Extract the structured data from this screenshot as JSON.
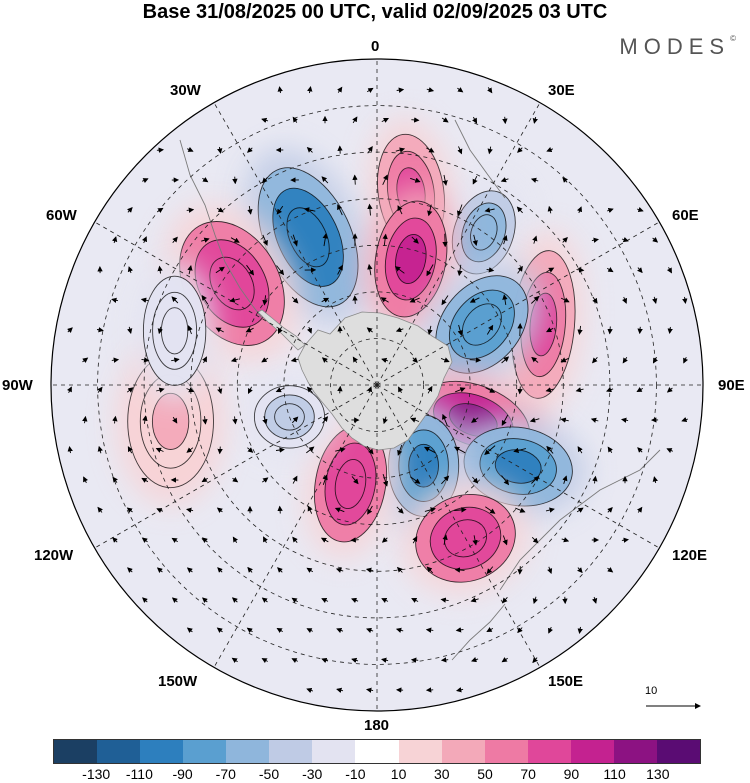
{
  "title": "Base 31/08/2025 00 UTC, valid 02/09/2025 03 UTC",
  "brand": "MODES",
  "brand_mark": "©",
  "longitudes": {
    "n": "0",
    "n30e": "30E",
    "n60e": "60E",
    "e": "90E",
    "s120e": "120E",
    "s150e": "150E",
    "s": "180",
    "s150w": "150W",
    "s120w": "120W",
    "w": "90W",
    "n60w": "60W",
    "n30w": "30W"
  },
  "reference_vector": {
    "label": "10",
    "magnitude": 10
  },
  "colorbar": {
    "colors": [
      "#1b3f63",
      "#1f5f96",
      "#2d7fbe",
      "#5a9fd0",
      "#8fb6dc",
      "#bfcbe5",
      "#e3e3f1",
      "#ffffff",
      "#f7d3d6",
      "#f3a9b9",
      "#ee7aa4",
      "#e0479a",
      "#c42290",
      "#8c1282",
      "#5a0c73"
    ],
    "ticks": [
      "-130",
      "-110",
      "-90",
      "-70",
      "-50",
      "-30",
      "-10",
      "10",
      "30",
      "50",
      "70",
      "90",
      "110",
      "130"
    ]
  },
  "anomalies": [
    {
      "lat": -48,
      "lon": 10,
      "value": 80,
      "rx": 42,
      "ry": 75,
      "rot": -8
    },
    {
      "lat": -50,
      "lon": 35,
      "value": -70,
      "rx": 38,
      "ry": 55,
      "rot": 20
    },
    {
      "lat": -55,
      "lon": -25,
      "value": -110,
      "rx": 55,
      "ry": 95,
      "rot": -25
    },
    {
      "lat": -52,
      "lon": -55,
      "value": 85,
      "rx": 60,
      "ry": 85,
      "rot": -30
    },
    {
      "lat": -62,
      "lon": 15,
      "value": 95,
      "rx": 45,
      "ry": 75,
      "rot": 10
    },
    {
      "lat": -52,
      "lon": 70,
      "value": 70,
      "rx": 40,
      "ry": 95,
      "rot": 5
    },
    {
      "lat": -64,
      "lon": 60,
      "value": -90,
      "rx": 50,
      "ry": 70,
      "rot": 40
    },
    {
      "lat": -68,
      "lon": 110,
      "value": 110,
      "rx": 75,
      "ry": 45,
      "rot": 20
    },
    {
      "lat": -55,
      "lon": 120,
      "value": -100,
      "rx": 70,
      "ry": 50,
      "rot": 10
    },
    {
      "lat": -70,
      "lon": 150,
      "value": -100,
      "rx": 45,
      "ry": 65,
      "rot": 0
    },
    {
      "lat": -52,
      "lon": 150,
      "value": 85,
      "rx": 65,
      "ry": 55,
      "rot": -20
    },
    {
      "lat": -68,
      "lon": -165,
      "value": 85,
      "rx": 45,
      "ry": 75,
      "rot": 10
    },
    {
      "lat": -70,
      "lon": -110,
      "value": -40,
      "rx": 45,
      "ry": 40,
      "rot": 0
    },
    {
      "lat": -45,
      "lon": -100,
      "value": 35,
      "rx": 55,
      "ry": 85,
      "rot": 0
    },
    {
      "lat": -45,
      "lon": -75,
      "value": -30,
      "rx": 40,
      "ry": 70,
      "rot": 0
    }
  ]
}
